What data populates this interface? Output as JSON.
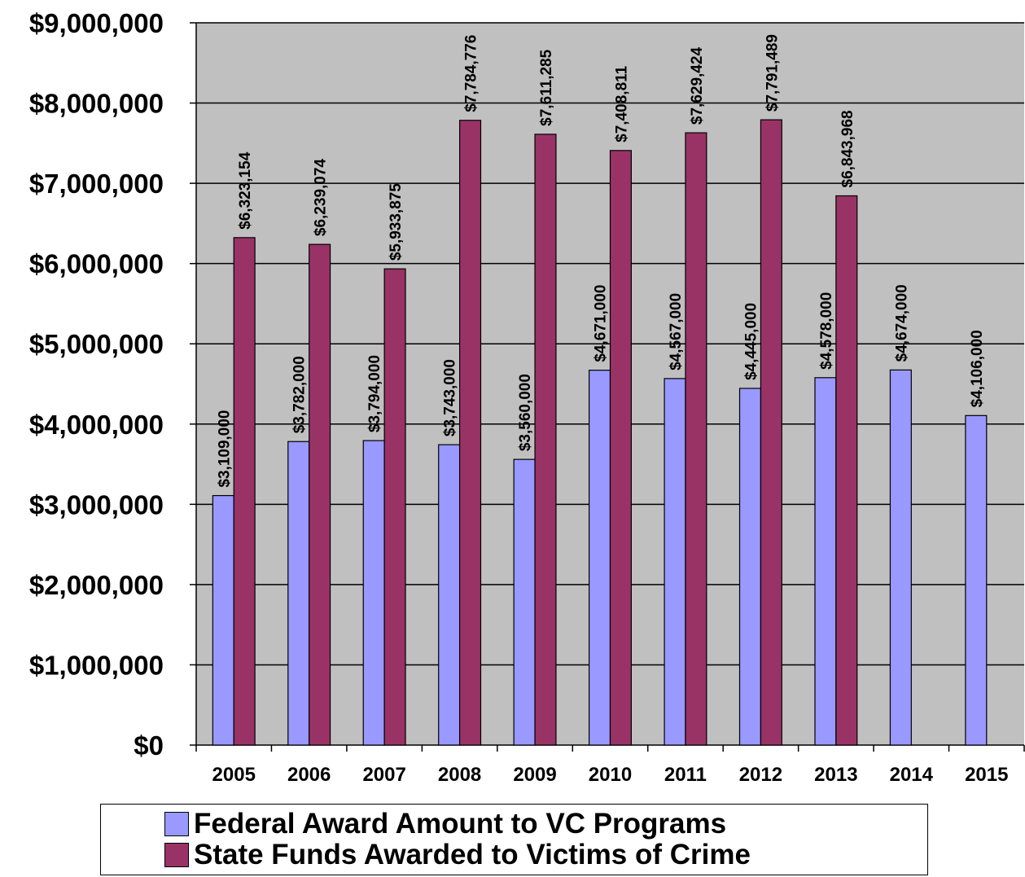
{
  "chart_data": {
    "type": "bar",
    "categories": [
      "2005",
      "2006",
      "2007",
      "2008",
      "2009",
      "2010",
      "2011",
      "2012",
      "2013",
      "2014",
      "2015"
    ],
    "series": [
      {
        "name": "Federal Award Amount to VC Programs",
        "color": "#9999ff",
        "values": [
          3109000,
          3782000,
          3794000,
          3743000,
          3560000,
          4671000,
          4567000,
          4445000,
          4578000,
          4674000,
          4106000
        ],
        "labels": [
          "$3,109,000",
          "$3,782,000",
          "$3,794,000",
          "$3,743,000",
          "$3,560,000",
          "$4,671,000",
          "$4,567,000",
          "$4,445,000",
          "$4,578,000",
          "$4,674,000",
          "$4,106,000"
        ]
      },
      {
        "name": "State Funds Awarded to Victims of Crime",
        "color": "#993366",
        "values": [
          6323154,
          6239074,
          5933875,
          7784776,
          7611285,
          7408811,
          7629424,
          7791489,
          6843968,
          null,
          null
        ],
        "labels": [
          "$6,323,154",
          "$6,239,074",
          "$5,933,875",
          "$7,784,776",
          "$7,611,285",
          "$7,408,811",
          "$7,629,424",
          "$7,791,489",
          "$6,843,968",
          "",
          ""
        ]
      }
    ],
    "yticks": [
      0,
      1000000,
      2000000,
      3000000,
      4000000,
      5000000,
      6000000,
      7000000,
      8000000,
      9000000
    ],
    "ytick_labels": [
      "$0",
      "$1,000,000",
      "$2,000,000",
      "$3,000,000",
      "$4,000,000",
      "$5,000,000",
      "$6,000,000",
      "$7,000,000",
      "$8,000,000",
      "$9,000,000"
    ],
    "ylim": [
      0,
      9000000
    ],
    "title": "",
    "xlabel": "",
    "ylabel": "",
    "grid": true,
    "plot_background": "#c0c0c0",
    "legend_position": "bottom"
  }
}
